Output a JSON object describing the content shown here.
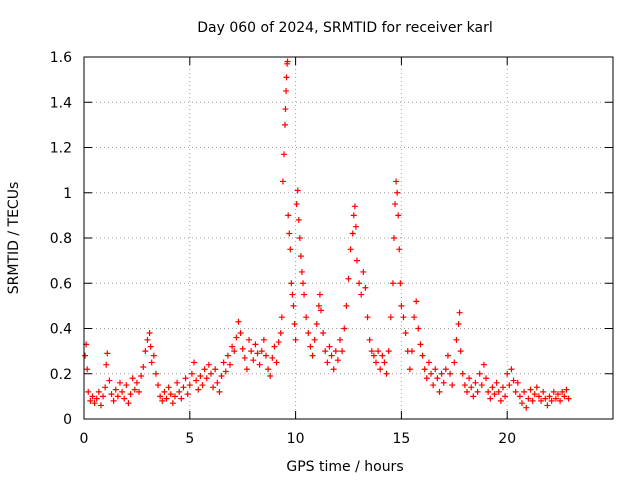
{
  "chart_data": {
    "type": "scatter",
    "title": "Day 060 of 2024, SRMTID for receiver karl",
    "xlabel": "GPS time / hours",
    "ylabel": "SRMTID / TECUs",
    "xlim": [
      0,
      25
    ],
    "ylim": [
      0,
      1.6
    ],
    "xticks": [
      0,
      5,
      10,
      15,
      20
    ],
    "xtick_labels": [
      "0",
      "5",
      "10",
      "15",
      "20"
    ],
    "yticks": [
      0,
      0.2,
      0.4,
      0.6,
      0.8,
      1.0,
      1.2,
      1.4,
      1.6
    ],
    "ytick_labels": [
      "0",
      "0.2",
      "0.4",
      "0.6",
      "0.8",
      "1",
      "1.2",
      "1.4",
      "1.6"
    ],
    "grid": true,
    "marker": "+",
    "color": "#ff0000",
    "series": [
      {
        "name": "SRMTID",
        "points": [
          [
            0.05,
            0.28
          ],
          [
            0.1,
            0.33
          ],
          [
            0.15,
            0.22
          ],
          [
            0.2,
            0.12
          ],
          [
            0.3,
            0.08
          ],
          [
            0.4,
            0.1
          ],
          [
            0.5,
            0.07
          ],
          [
            0.6,
            0.09
          ],
          [
            0.7,
            0.12
          ],
          [
            0.8,
            0.06
          ],
          [
            0.9,
            0.1
          ],
          [
            1.0,
            0.14
          ],
          [
            1.05,
            0.24
          ],
          [
            1.1,
            0.29
          ],
          [
            1.2,
            0.17
          ],
          [
            1.3,
            0.11
          ],
          [
            1.4,
            0.08
          ],
          [
            1.5,
            0.13
          ],
          [
            1.6,
            0.1
          ],
          [
            1.7,
            0.16
          ],
          [
            1.8,
            0.12
          ],
          [
            1.9,
            0.09
          ],
          [
            2.0,
            0.15
          ],
          [
            2.1,
            0.07
          ],
          [
            2.2,
            0.11
          ],
          [
            2.3,
            0.18
          ],
          [
            2.4,
            0.13
          ],
          [
            2.5,
            0.16
          ],
          [
            2.6,
            0.12
          ],
          [
            2.7,
            0.19
          ],
          [
            2.8,
            0.23
          ],
          [
            2.9,
            0.3
          ],
          [
            3.0,
            0.35
          ],
          [
            3.1,
            0.38
          ],
          [
            3.15,
            0.32
          ],
          [
            3.2,
            0.25
          ],
          [
            3.3,
            0.28
          ],
          [
            3.4,
            0.2
          ],
          [
            3.5,
            0.15
          ],
          [
            3.6,
            0.1
          ],
          [
            3.7,
            0.08
          ],
          [
            3.8,
            0.12
          ],
          [
            3.9,
            0.09
          ],
          [
            4.0,
            0.14
          ],
          [
            4.1,
            0.11
          ],
          [
            4.2,
            0.07
          ],
          [
            4.3,
            0.1
          ],
          [
            4.4,
            0.16
          ],
          [
            4.5,
            0.12
          ],
          [
            4.6,
            0.09
          ],
          [
            4.7,
            0.14
          ],
          [
            4.8,
            0.18
          ],
          [
            4.9,
            0.11
          ],
          [
            5.0,
            0.15
          ],
          [
            5.1,
            0.2
          ],
          [
            5.2,
            0.25
          ],
          [
            5.3,
            0.17
          ],
          [
            5.4,
            0.13
          ],
          [
            5.5,
            0.19
          ],
          [
            5.6,
            0.15
          ],
          [
            5.7,
            0.22
          ],
          [
            5.8,
            0.18
          ],
          [
            5.9,
            0.24
          ],
          [
            6.0,
            0.2
          ],
          [
            6.1,
            0.14
          ],
          [
            6.2,
            0.22
          ],
          [
            6.3,
            0.16
          ],
          [
            6.4,
            0.12
          ],
          [
            6.5,
            0.19
          ],
          [
            6.6,
            0.25
          ],
          [
            6.7,
            0.21
          ],
          [
            6.8,
            0.28
          ],
          [
            6.9,
            0.24
          ],
          [
            7.0,
            0.32
          ],
          [
            7.1,
            0.3
          ],
          [
            7.2,
            0.36
          ],
          [
            7.3,
            0.43
          ],
          [
            7.4,
            0.38
          ],
          [
            7.5,
            0.31
          ],
          [
            7.6,
            0.27
          ],
          [
            7.7,
            0.22
          ],
          [
            7.8,
            0.35
          ],
          [
            7.9,
            0.3
          ],
          [
            8.0,
            0.26
          ],
          [
            8.1,
            0.33
          ],
          [
            8.2,
            0.29
          ],
          [
            8.3,
            0.24
          ],
          [
            8.4,
            0.3
          ],
          [
            8.5,
            0.35
          ],
          [
            8.6,
            0.28
          ],
          [
            8.7,
            0.22
          ],
          [
            8.8,
            0.19
          ],
          [
            8.9,
            0.27
          ],
          [
            9.0,
            0.32
          ],
          [
            9.1,
            0.25
          ],
          [
            9.2,
            0.34
          ],
          [
            9.3,
            0.38
          ],
          [
            9.35,
            0.45
          ],
          [
            9.4,
            1.05
          ],
          [
            9.45,
            1.17
          ],
          [
            9.5,
            1.3
          ],
          [
            9.52,
            1.37
          ],
          [
            9.55,
            1.45
          ],
          [
            9.57,
            1.51
          ],
          [
            9.6,
            1.57
          ],
          [
            9.62,
            1.58
          ],
          [
            9.65,
            0.9
          ],
          [
            9.7,
            0.82
          ],
          [
            9.75,
            0.75
          ],
          [
            9.8,
            0.6
          ],
          [
            9.85,
            0.55
          ],
          [
            9.9,
            0.5
          ],
          [
            9.95,
            0.42
          ],
          [
            10.0,
            0.35
          ],
          [
            10.05,
            0.95
          ],
          [
            10.1,
            1.01
          ],
          [
            10.15,
            0.88
          ],
          [
            10.2,
            0.8
          ],
          [
            10.25,
            0.72
          ],
          [
            10.3,
            0.65
          ],
          [
            10.35,
            0.6
          ],
          [
            10.4,
            0.55
          ],
          [
            10.5,
            0.45
          ],
          [
            10.6,
            0.38
          ],
          [
            10.7,
            0.32
          ],
          [
            10.8,
            0.28
          ],
          [
            10.9,
            0.35
          ],
          [
            11.0,
            0.42
          ],
          [
            11.1,
            0.5
          ],
          [
            11.15,
            0.55
          ],
          [
            11.2,
            0.48
          ],
          [
            11.3,
            0.38
          ],
          [
            11.4,
            0.3
          ],
          [
            11.5,
            0.25
          ],
          [
            11.6,
            0.32
          ],
          [
            11.7,
            0.28
          ],
          [
            11.8,
            0.22
          ],
          [
            11.9,
            0.3
          ],
          [
            12.0,
            0.26
          ],
          [
            12.1,
            0.35
          ],
          [
            12.2,
            0.3
          ],
          [
            12.3,
            0.4
          ],
          [
            12.4,
            0.5
          ],
          [
            12.5,
            0.62
          ],
          [
            12.6,
            0.75
          ],
          [
            12.7,
            0.82
          ],
          [
            12.75,
            0.9
          ],
          [
            12.8,
            0.94
          ],
          [
            12.85,
            0.85
          ],
          [
            12.9,
            0.7
          ],
          [
            13.0,
            0.6
          ],
          [
            13.1,
            0.55
          ],
          [
            13.2,
            0.65
          ],
          [
            13.3,
            0.58
          ],
          [
            13.4,
            0.45
          ],
          [
            13.5,
            0.35
          ],
          [
            13.6,
            0.3
          ],
          [
            13.7,
            0.28
          ],
          [
            13.8,
            0.25
          ],
          [
            13.9,
            0.3
          ],
          [
            14.0,
            0.22
          ],
          [
            14.1,
            0.28
          ],
          [
            14.2,
            0.25
          ],
          [
            14.3,
            0.2
          ],
          [
            14.4,
            0.3
          ],
          [
            14.5,
            0.45
          ],
          [
            14.6,
            0.6
          ],
          [
            14.65,
            0.8
          ],
          [
            14.7,
            0.95
          ],
          [
            14.75,
            1.05
          ],
          [
            14.8,
            1.0
          ],
          [
            14.85,
            0.9
          ],
          [
            14.9,
            0.75
          ],
          [
            14.95,
            0.6
          ],
          [
            15.0,
            0.5
          ],
          [
            15.1,
            0.45
          ],
          [
            15.2,
            0.38
          ],
          [
            15.3,
            0.3
          ],
          [
            15.4,
            0.22
          ],
          [
            15.5,
            0.3
          ],
          [
            15.6,
            0.45
          ],
          [
            15.7,
            0.52
          ],
          [
            15.8,
            0.4
          ],
          [
            15.9,
            0.33
          ],
          [
            16.0,
            0.28
          ],
          [
            16.1,
            0.22
          ],
          [
            16.2,
            0.18
          ],
          [
            16.3,
            0.25
          ],
          [
            16.4,
            0.2
          ],
          [
            16.5,
            0.15
          ],
          [
            16.6,
            0.22
          ],
          [
            16.7,
            0.18
          ],
          [
            16.8,
            0.12
          ],
          [
            16.9,
            0.2
          ],
          [
            17.0,
            0.16
          ],
          [
            17.1,
            0.22
          ],
          [
            17.2,
            0.28
          ],
          [
            17.3,
            0.2
          ],
          [
            17.4,
            0.15
          ],
          [
            17.5,
            0.25
          ],
          [
            17.6,
            0.35
          ],
          [
            17.7,
            0.42
          ],
          [
            17.75,
            0.47
          ],
          [
            17.8,
            0.3
          ],
          [
            17.9,
            0.2
          ],
          [
            18.0,
            0.15
          ],
          [
            18.1,
            0.12
          ],
          [
            18.2,
            0.18
          ],
          [
            18.3,
            0.14
          ],
          [
            18.4,
            0.1
          ],
          [
            18.5,
            0.16
          ],
          [
            18.6,
            0.12
          ],
          [
            18.7,
            0.2
          ],
          [
            18.8,
            0.15
          ],
          [
            18.9,
            0.24
          ],
          [
            19.0,
            0.18
          ],
          [
            19.1,
            0.12
          ],
          [
            19.2,
            0.09
          ],
          [
            19.3,
            0.14
          ],
          [
            19.4,
            0.11
          ],
          [
            19.5,
            0.16
          ],
          [
            19.6,
            0.12
          ],
          [
            19.7,
            0.08
          ],
          [
            19.8,
            0.14
          ],
          [
            19.9,
            0.1
          ],
          [
            20.0,
            0.2
          ],
          [
            20.1,
            0.15
          ],
          [
            20.2,
            0.22
          ],
          [
            20.3,
            0.17
          ],
          [
            20.4,
            0.12
          ],
          [
            20.5,
            0.16
          ],
          [
            20.6,
            0.1
          ],
          [
            20.7,
            0.07
          ],
          [
            20.8,
            0.12
          ],
          [
            20.9,
            0.05
          ],
          [
            21.0,
            0.09
          ],
          [
            21.1,
            0.13
          ],
          [
            21.2,
            0.08
          ],
          [
            21.3,
            0.11
          ],
          [
            21.4,
            0.14
          ],
          [
            21.5,
            0.1
          ],
          [
            21.6,
            0.08
          ],
          [
            21.7,
            0.12
          ],
          [
            21.8,
            0.09
          ],
          [
            21.9,
            0.06
          ],
          [
            22.0,
            0.1
          ],
          [
            22.1,
            0.08
          ],
          [
            22.2,
            0.12
          ],
          [
            22.3,
            0.09
          ],
          [
            22.4,
            0.11
          ],
          [
            22.5,
            0.08
          ],
          [
            22.6,
            0.12
          ],
          [
            22.7,
            0.1
          ],
          [
            22.8,
            0.13
          ],
          [
            22.9,
            0.09
          ]
        ]
      }
    ]
  }
}
